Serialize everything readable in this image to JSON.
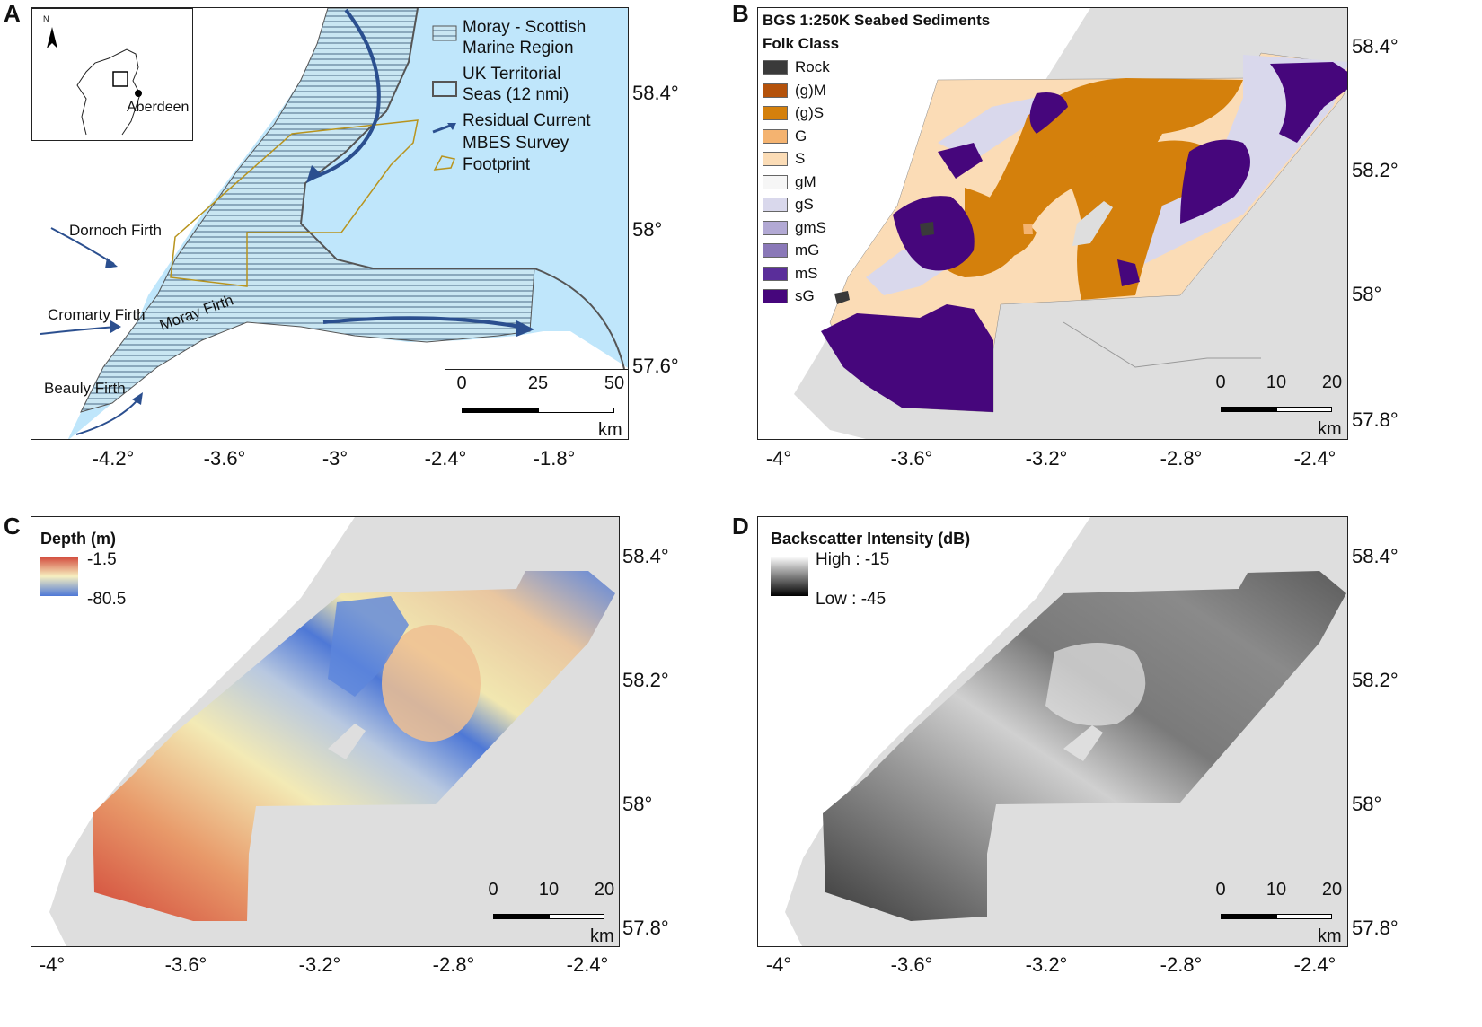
{
  "panels": [
    {
      "letter": "A"
    },
    {
      "letter": "B"
    },
    {
      "letter": "C"
    },
    {
      "letter": "D"
    }
  ],
  "panel_a": {
    "x_ticks": [
      "-4.2°",
      "-3.6°",
      "-3°",
      "-2.4°",
      "-1.8°"
    ],
    "y_ticks": [
      "58.4°",
      "58°",
      "57.6°"
    ],
    "legend": {
      "moray_region": "Moray - Scottish",
      "moray_region_2": "Marine Region",
      "territorial": "UK Territorial",
      "territorial_2": "Seas (12 nmi)",
      "residual": "Residual Current",
      "mbes": "MBES Survey",
      "mbes_2": "Footprint"
    },
    "place_labels": {
      "dornoch": "Dornoch Firth",
      "cromarty": "Cromarty Firth",
      "moray": "Moray Firth",
      "beauly": "Beauly Firth"
    },
    "inset": {
      "north": "N",
      "city": "Aberdeen"
    },
    "scale": {
      "ticks": [
        "0",
        "25",
        "50"
      ],
      "unit": "km"
    }
  },
  "panel_b": {
    "x_ticks": [
      "-4°",
      "-3.6°",
      "-3.2°",
      "-2.8°",
      "-2.4°"
    ],
    "y_ticks": [
      "58.4°",
      "58.2°",
      "58°",
      "57.8°"
    ],
    "legend_title": "BGS 1:250K Seabed Sediments",
    "legend_subtitle": "Folk Class",
    "classes": [
      {
        "label": "Rock",
        "color": "#3a3a3a"
      },
      {
        "label": "(g)M",
        "color": "#b4520b"
      },
      {
        "label": "(g)S",
        "color": "#d4800c"
      },
      {
        "label": "G",
        "color": "#f4b370"
      },
      {
        "label": "S",
        "color": "#fbdcb6"
      },
      {
        "label": "gM",
        "color": "#f6f6f6"
      },
      {
        "label": "gS",
        "color": "#d9d8ec"
      },
      {
        "label": "gmS",
        "color": "#b2a9d4"
      },
      {
        "label": "mG",
        "color": "#8a78b8"
      },
      {
        "label": "mS",
        "color": "#5a2e9a"
      },
      {
        "label": "sG",
        "color": "#46067c"
      }
    ],
    "scale": {
      "ticks": [
        "0",
        "10",
        "20"
      ],
      "unit": "km"
    }
  },
  "panel_c": {
    "x_ticks": [
      "-4°",
      "-3.6°",
      "-3.2°",
      "-2.8°",
      "-2.4°"
    ],
    "y_ticks": [
      "58.4°",
      "58.2°",
      "58°",
      "57.8°"
    ],
    "legend_title": "Depth (m)",
    "legend_high": "-1.5",
    "legend_low": "-80.5",
    "scale": {
      "ticks": [
        "0",
        "10",
        "20"
      ],
      "unit": "km"
    }
  },
  "panel_d": {
    "x_ticks": [
      "-4°",
      "-3.6°",
      "-3.2°",
      "-2.8°",
      "-2.4°"
    ],
    "y_ticks": [
      "58.4°",
      "58.2°",
      "58°",
      "57.8°"
    ],
    "legend_title": "Backscatter Intensity (dB)",
    "legend_high": "High : -15",
    "legend_low": "Low : -45",
    "scale": {
      "ticks": [
        "0",
        "10",
        "20"
      ],
      "unit": "km"
    }
  },
  "colors": {
    "sea": "#bfe6fb",
    "land": "#dedede",
    "current": "#2b4f8f",
    "mbes_outline": "#b8941e"
  }
}
